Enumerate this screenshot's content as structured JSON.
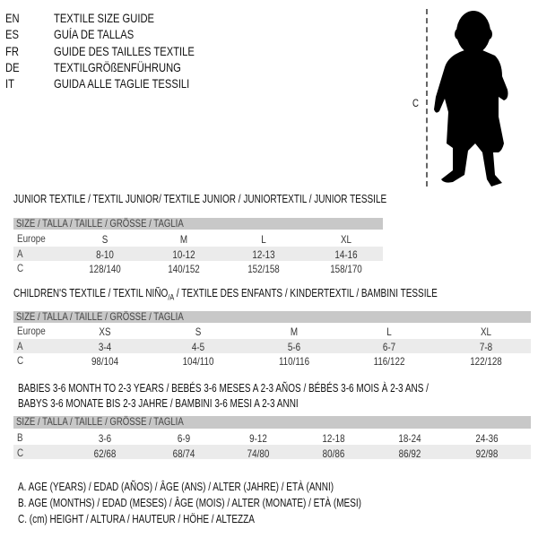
{
  "languages": [
    {
      "code": "EN",
      "text": "TEXTILE SIZE GUIDE"
    },
    {
      "code": "ES",
      "text": "GUÍA DE TALLAS"
    },
    {
      "code": "FR",
      "text": "GUIDE DES TAILLES TEXTILE"
    },
    {
      "code": "DE",
      "text": "TEXTILGRÖßENFÜHRUNG"
    },
    {
      "code": "IT",
      "text": "GUIDA ALLE TAGLIE TESSILI"
    }
  ],
  "figure": {
    "measure_label": "C",
    "icon": "child-silhouette"
  },
  "size_header": "SIZE / TALLA / TAILLE / GRÖSSE / TAGLIA",
  "junior": {
    "title": "JUNIOR TEXTILE / TEXTIL JUNIOR/ TEXTILE JUNIOR / JUNIORTEXTIL / JUNIOR TESSILE",
    "rows": [
      {
        "label": "Europe",
        "values": [
          "S",
          "M",
          "L",
          "XL"
        ]
      },
      {
        "label": "A",
        "values": [
          "8-10",
          "10-12",
          "12-13",
          "14-16"
        ]
      },
      {
        "label": "C",
        "values": [
          "128/140",
          "140/152",
          "152/158",
          "158/170"
        ]
      }
    ]
  },
  "children": {
    "title": "CHILDREN'S TEXTILE / TEXTIL NIÑO",
    "title_sub": "/A",
    "title_rest": " / TEXTILE DES ENFANTS / KINDERTEXTIL / BAMBINI TESSILE",
    "rows": [
      {
        "label": "Europe",
        "values": [
          "XS",
          "S",
          "M",
          "L",
          "XL"
        ]
      },
      {
        "label": "A",
        "values": [
          "3-4",
          "4-5",
          "5-6",
          "6-7",
          "7-8"
        ]
      },
      {
        "label": "C",
        "values": [
          "98/104",
          "104/110",
          "110/116",
          "116/122",
          "122/128"
        ]
      }
    ]
  },
  "babies": {
    "title_line1": "BABIES 3-6 MONTH TO 2-3 YEARS / BEBÉS 3-6 MESES A 2-3 AÑOS / BÉBÉS 3-6 MOIS À 2-3 ANS /",
    "title_line2": "BABYS 3-6 MONATE BIS 2-3 JAHRE / BAMBINI 3-6 MESI A 2-3 ANNI",
    "rows": [
      {
        "label": "B",
        "values": [
          "3-6",
          "6-9",
          "9-12",
          "12-18",
          "18-24",
          "24-36"
        ]
      },
      {
        "label": "C",
        "values": [
          "62/68",
          "68/74",
          "74/80",
          "80/86",
          "86/92",
          "92/98"
        ]
      }
    ]
  },
  "legend": [
    "A. AGE (YEARS) / EDAD (AÑOS) / ÂGE (ANS) / ALTER (JAHRE) / ETÀ (ANNI)",
    "B. AGE (MONTHS) / EDAD (MESES) / ÂGE (MOIS) / ALTER (MONATE) / ETÀ (MESI)",
    "C. (cm) HEIGHT / ALTURA / HAUTEUR / HÖHE / ALTEZZA"
  ]
}
